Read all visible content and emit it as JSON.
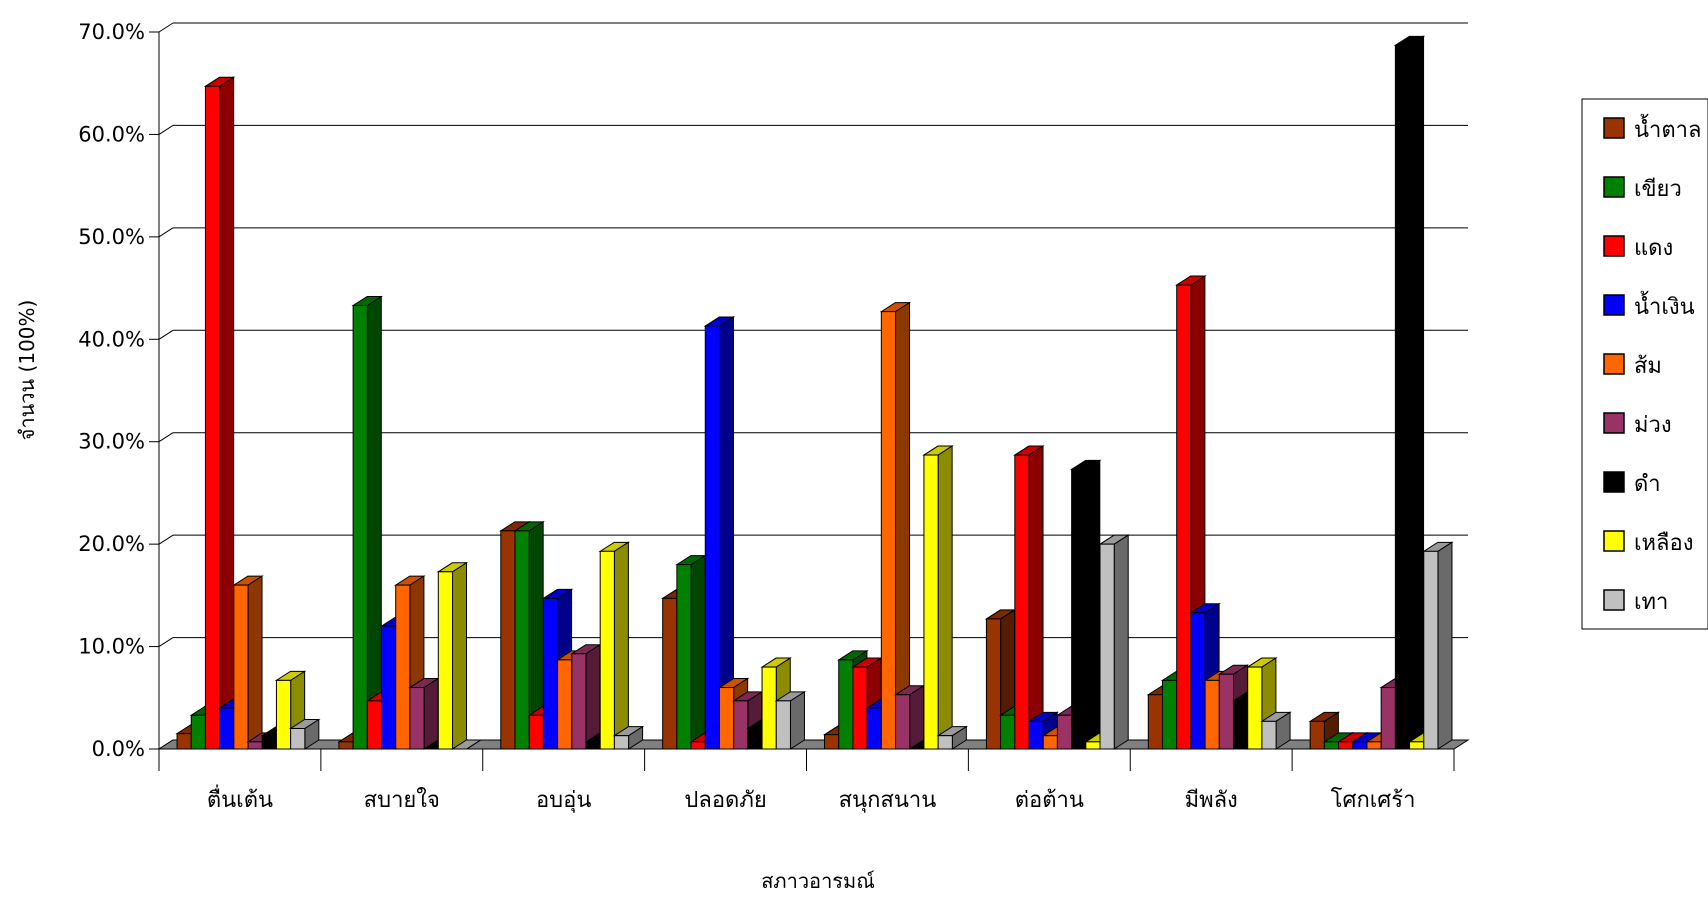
{
  "chart_data": {
    "type": "bar",
    "title": "",
    "xlabel": "สภาวอารมณ์",
    "ylabel": "จำนวน (100%)",
    "ylim": [
      0,
      70
    ],
    "y_ticks": [
      "0.0%",
      "10.0%",
      "20.0%",
      "30.0%",
      "40.0%",
      "50.0%",
      "60.0%",
      "70.0%"
    ],
    "grid": true,
    "legend_position": "right",
    "categories": [
      "ตื่นเต้น",
      "สบายใจ",
      "อบอุ่น",
      "ปลอดภัย",
      "สนุกสนาน",
      "ต่อต้าน",
      "มีพลัง",
      "โศกเศร้า"
    ],
    "series": [
      {
        "name": "น้ำตาล",
        "color": "#993300",
        "values": [
          1.5,
          0.7,
          21.3,
          14.7,
          1.4,
          12.7,
          5.3,
          2.7
        ]
      },
      {
        "name": "เขียว",
        "color": "#008000",
        "values": [
          3.3,
          43.3,
          21.3,
          18.0,
          8.7,
          3.3,
          6.7,
          0.7
        ]
      },
      {
        "name": "แดง",
        "color": "#ff0000",
        "values": [
          64.7,
          4.7,
          3.3,
          0.7,
          8.0,
          28.7,
          45.3,
          0.7
        ]
      },
      {
        "name": "น้ำเงิน",
        "color": "#0000ff",
        "values": [
          4.0,
          12.0,
          14.7,
          41.3,
          4.0,
          2.7,
          13.3,
          0.7
        ]
      },
      {
        "name": "ส้ม",
        "color": "#ff6600",
        "values": [
          16.0,
          16.0,
          8.7,
          6.0,
          42.7,
          1.3,
          6.7,
          0.7
        ]
      },
      {
        "name": "ม่วง",
        "color": "#993366",
        "values": [
          0.7,
          6.0,
          9.3,
          4.7,
          5.3,
          3.3,
          7.3,
          6.0
        ]
      },
      {
        "name": "ดำ",
        "color": "#000000",
        "values": [
          1.3,
          0.0,
          0.7,
          2.0,
          0.0,
          27.3,
          4.7,
          68.7
        ]
      },
      {
        "name": "เหลือง",
        "color": "#ffff00",
        "values": [
          6.7,
          17.3,
          19.3,
          8.0,
          28.7,
          0.7,
          8.0,
          0.7
        ]
      },
      {
        "name": "เทา",
        "color": "#c0c0c0",
        "values": [
          2.0,
          0.0,
          1.3,
          4.7,
          1.3,
          20.0,
          2.7,
          19.3
        ]
      }
    ]
  }
}
